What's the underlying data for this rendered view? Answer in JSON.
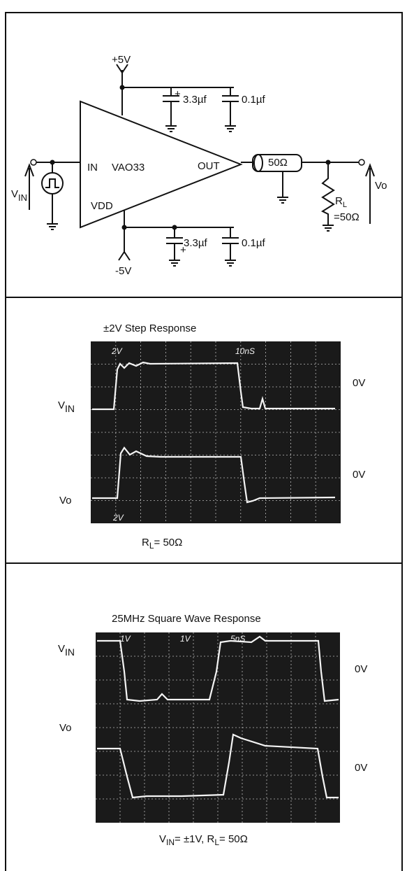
{
  "circuit": {
    "supply_pos": "+5V",
    "cap_top_1": "3.3µf",
    "cap_top_2": "0.1µf",
    "cap_bottom_1": "3.3µf",
    "cap_bottom_2": "0.1µf",
    "supply_neg": "-5V",
    "pin_in": "IN",
    "part": "VAO33",
    "pin_out": "OUT",
    "pin_vdd": "VDD",
    "coax": "50Ω",
    "vin": {
      "main": "V",
      "sub": "IN"
    },
    "vo": "Vo",
    "load_name": {
      "main": "R",
      "sub": "L"
    },
    "load_value": "=50Ω"
  },
  "step_panel": {
    "title": "±2V Step Response",
    "scope_top_scale": "2V",
    "scope_time": "10nS",
    "scope_bottom_scale": "2V",
    "vin": {
      "main": "V",
      "sub": "IN"
    },
    "vo": "Vo",
    "zero_top": "0V",
    "zero_bottom": "0V",
    "caption": {
      "main": "R",
      "sub": "L",
      "rest": "= 50Ω"
    }
  },
  "square_panel": {
    "title": "25MHz Square Wave Response",
    "scope_scale_1": "1V",
    "scope_scale_2": "1V",
    "scope_time": "5nS",
    "vin": {
      "main": "V",
      "sub": "IN"
    },
    "vo": "Vo",
    "zero_top": "0V",
    "zero_bottom": "0V",
    "caption": {
      "v": "V",
      "v_sub": "IN",
      "v_rest": "= ±1V, R",
      "r_sub": "L",
      "r_rest": "= 50Ω"
    }
  }
}
